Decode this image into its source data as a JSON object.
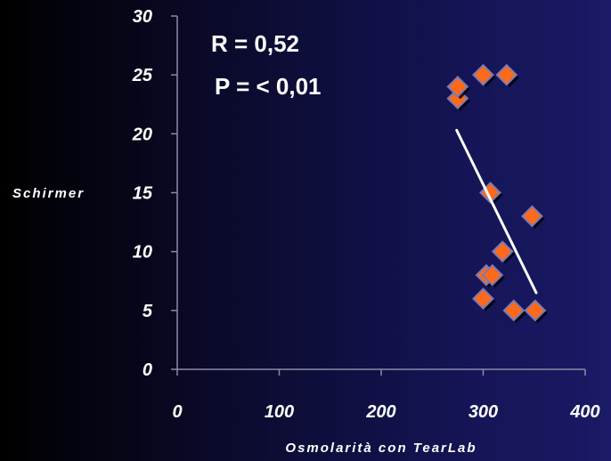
{
  "chart_data": {
    "type": "scatter",
    "xlabel": "Osmolarità con TearLab",
    "ylabel": "Schirmer",
    "xlim": [
      0,
      400
    ],
    "ylim": [
      0,
      30
    ],
    "x_ticks": [
      "0",
      "100",
      "200",
      "300",
      "400"
    ],
    "y_ticks": [
      "0",
      "5",
      "10",
      "15",
      "20",
      "25",
      "30"
    ],
    "annotations": [
      "R = 0,52",
      "P = < 0,01"
    ],
    "series": [
      {
        "points": [
          {
            "x": 275,
            "y": 23
          },
          {
            "x": 275,
            "y": 24
          },
          {
            "x": 300,
            "y": 25
          },
          {
            "x": 323,
            "y": 25
          },
          {
            "x": 307,
            "y": 15
          },
          {
            "x": 348,
            "y": 13
          },
          {
            "x": 319,
            "y": 10
          },
          {
            "x": 303,
            "y": 8
          },
          {
            "x": 309,
            "y": 8
          },
          {
            "x": 300,
            "y": 6
          },
          {
            "x": 330,
            "y": 5
          },
          {
            "x": 351,
            "y": 5
          }
        ]
      }
    ],
    "trendline": {
      "x": [
        274,
        352
      ],
      "y": [
        20.3,
        6.5
      ]
    },
    "grid": false,
    "colors": {
      "marker_fill": "#ff6a1a",
      "marker_edge": "#7a7ab8",
      "trendline": "#ffffff",
      "axis": "#8a8aa8",
      "text": "#ffffff"
    }
  }
}
